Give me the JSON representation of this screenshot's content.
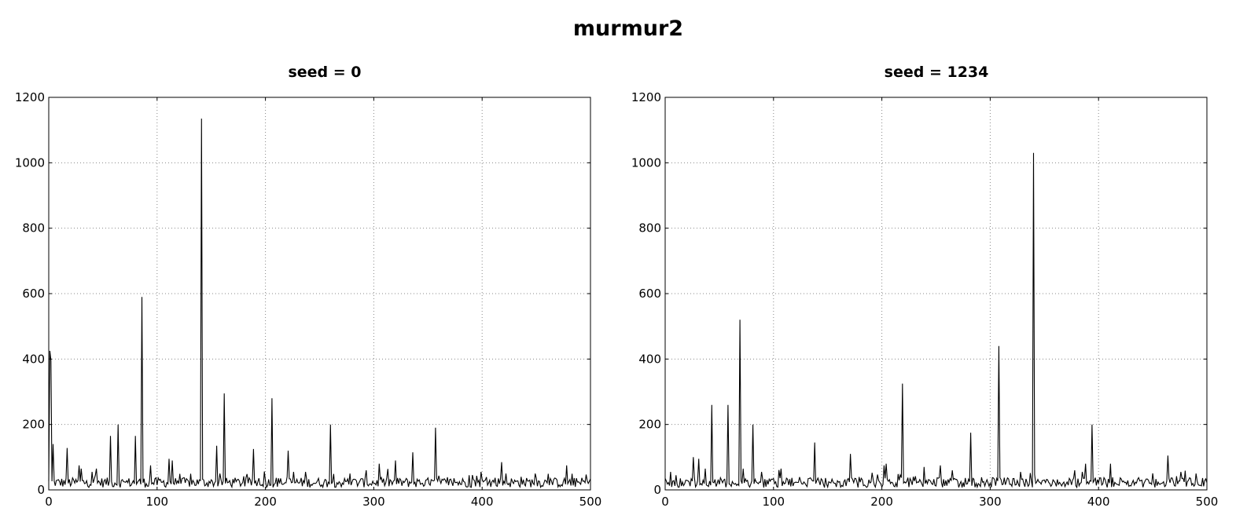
{
  "figure_title": "murmur2",
  "chart_data": [
    {
      "type": "line",
      "title": "seed = 0",
      "xlim": [
        0,
        500
      ],
      "ylim": [
        0,
        1200
      ],
      "xticks": [
        "0",
        "100",
        "200",
        "300",
        "400",
        "500"
      ],
      "yticks": [
        "0",
        "200",
        "400",
        "600",
        "800",
        "1000",
        "1200"
      ],
      "grid": true,
      "line_color": "#000000",
      "baseline_level": 25,
      "peaks": [
        [
          1,
          425
        ],
        [
          2,
          395
        ],
        [
          4,
          140
        ],
        [
          17,
          128
        ],
        [
          28,
          75
        ],
        [
          30,
          65
        ],
        [
          40,
          55
        ],
        [
          44,
          65
        ],
        [
          57,
          165
        ],
        [
          64,
          200
        ],
        [
          80,
          165
        ],
        [
          86,
          590
        ],
        [
          94,
          75
        ],
        [
          111,
          95
        ],
        [
          114,
          90
        ],
        [
          141,
          1135
        ],
        [
          155,
          135
        ],
        [
          162,
          295
        ],
        [
          189,
          125
        ],
        [
          206,
          280
        ],
        [
          221,
          120
        ],
        [
          226,
          55
        ],
        [
          237,
          55
        ],
        [
          260,
          200
        ],
        [
          278,
          50
        ],
        [
          293,
          60
        ],
        [
          305,
          80
        ],
        [
          320,
          90
        ],
        [
          336,
          115
        ],
        [
          357,
          190
        ],
        [
          388,
          45
        ],
        [
          399,
          55
        ],
        [
          418,
          85
        ],
        [
          422,
          50
        ],
        [
          436,
          40
        ],
        [
          449,
          50
        ],
        [
          478,
          75
        ]
      ]
    },
    {
      "type": "line",
      "title": "seed = 1234",
      "xlim": [
        0,
        500
      ],
      "ylim": [
        0,
        1200
      ],
      "xticks": [
        "0",
        "100",
        "200",
        "300",
        "400",
        "500"
      ],
      "yticks": [
        "0",
        "200",
        "400",
        "600",
        "800",
        "1000",
        "1200"
      ],
      "grid": true,
      "line_color": "#000000",
      "baseline_level": 25,
      "peaks": [
        [
          5,
          55
        ],
        [
          10,
          45
        ],
        [
          26,
          100
        ],
        [
          31,
          95
        ],
        [
          37,
          65
        ],
        [
          43,
          260
        ],
        [
          58,
          260
        ],
        [
          69,
          520
        ],
        [
          72,
          65
        ],
        [
          81,
          200
        ],
        [
          89,
          55
        ],
        [
          107,
          65
        ],
        [
          138,
          145
        ],
        [
          171,
          110
        ],
        [
          202,
          75
        ],
        [
          204,
          80
        ],
        [
          219,
          325
        ],
        [
          239,
          70
        ],
        [
          254,
          75
        ],
        [
          265,
          60
        ],
        [
          282,
          175
        ],
        [
          308,
          440
        ],
        [
          328,
          55
        ],
        [
          340,
          1030
        ],
        [
          378,
          60
        ],
        [
          385,
          55
        ],
        [
          388,
          80
        ],
        [
          394,
          200
        ],
        [
          411,
          80
        ],
        [
          464,
          105
        ],
        [
          476,
          55
        ],
        [
          490,
          50
        ]
      ]
    }
  ]
}
